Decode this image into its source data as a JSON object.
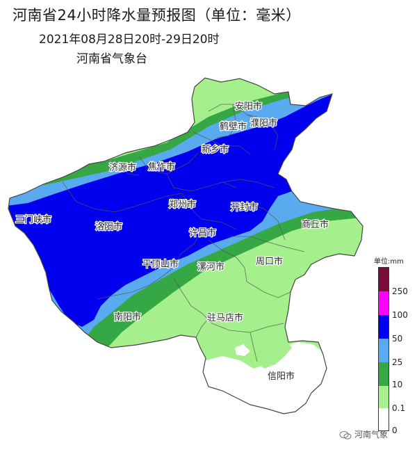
{
  "header": {
    "title": "河南省24小时降水量预报图（单位：毫米）",
    "subtitle": "2021年08月28日20时-29日20时",
    "issuer": "河南省气象台"
  },
  "cities": [
    {
      "id": "anyang",
      "label": "安阳市"
    },
    {
      "id": "hebi",
      "label": "鹤壁市"
    },
    {
      "id": "puyang",
      "label": "濮阳市"
    },
    {
      "id": "xinxiang",
      "label": "新乡市"
    },
    {
      "id": "jiyuan",
      "label": "济源市"
    },
    {
      "id": "jiaozuo",
      "label": "焦作市"
    },
    {
      "id": "zhengzhou",
      "label": "郑州市"
    },
    {
      "id": "kaifeng",
      "label": "开封市"
    },
    {
      "id": "sanmenxia",
      "label": "三门峡市"
    },
    {
      "id": "luoyang",
      "label": "洛阳市"
    },
    {
      "id": "xuchang",
      "label": "许昌市"
    },
    {
      "id": "shangqiu",
      "label": "商丘市"
    },
    {
      "id": "pingdingshan",
      "label": "平顶山市"
    },
    {
      "id": "luohe",
      "label": "漯河市"
    },
    {
      "id": "zhoukou",
      "label": "周口市"
    },
    {
      "id": "nanyang",
      "label": "南阳市"
    },
    {
      "id": "zhumadian",
      "label": "驻马店市"
    },
    {
      "id": "xinyang",
      "label": "信阳市"
    }
  ],
  "legend": {
    "unit_label": "单位:mm",
    "ticks": [
      "250",
      "100",
      "50",
      "25",
      "10",
      "0.1",
      "0"
    ],
    "colors": {
      "250_plus": "#7b0a3a",
      "100_250": "#ff00ff",
      "50_100": "#0000ee",
      "25_50": "#5aaaf0",
      "10_25": "#35a845",
      "0.1_10": "#a5ef8c",
      "0_0.1": "#ffffff"
    }
  },
  "watermark": {
    "text": "河南气象",
    "icon": "wechat-icon"
  }
}
